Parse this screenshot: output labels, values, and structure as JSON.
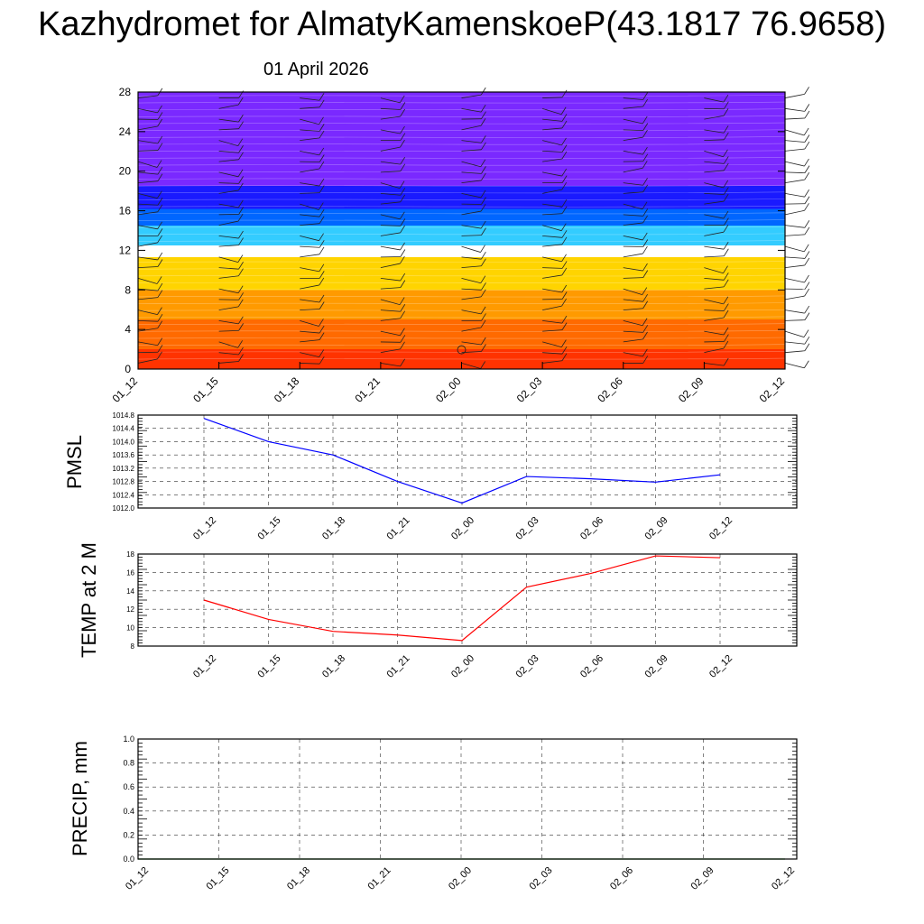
{
  "header": {
    "title": "Kazhydromet for AlmatyKamenskoeP(43.1817 76.9658)",
    "subtitle": "01 April 2026"
  },
  "chart_data": [
    {
      "type": "heatmap",
      "title": "",
      "x": [
        "01_12",
        "01_15",
        "01_18",
        "01_21",
        "02_00",
        "02_03",
        "02_06",
        "02_09",
        "02_12"
      ],
      "xticks": [
        "01_12",
        "01_15",
        "01_18",
        "01_21",
        "02_00",
        "02_03",
        "02_06",
        "02_09",
        "02_12"
      ],
      "yticks": [
        0,
        4,
        8,
        12,
        16,
        20,
        24,
        28
      ],
      "ylim": [
        0,
        28
      ],
      "color_bands": [
        {
          "from": 0,
          "to": 2,
          "color": "#ff3300"
        },
        {
          "from": 2,
          "to": 5,
          "color": "#ff6a00"
        },
        {
          "from": 5,
          "to": 8,
          "color": "#ff9a00"
        },
        {
          "from": 8,
          "to": 11.3,
          "color": "#ffd400"
        },
        {
          "from": 11.3,
          "to": 12.5,
          "color": "#ffffff"
        },
        {
          "from": 12.5,
          "to": 14.5,
          "color": "#33ccff"
        },
        {
          "from": 14.5,
          "to": 16.2,
          "color": "#0066ff"
        },
        {
          "from": 16.2,
          "to": 18.5,
          "color": "#1a1aff"
        },
        {
          "from": 18.5,
          "to": 28,
          "color": "#7a29ff"
        }
      ],
      "wind_barbs": true,
      "grid": false
    },
    {
      "type": "line",
      "ylabel": "PMSL",
      "x": [
        "01_12",
        "01_15",
        "01_18",
        "01_21",
        "02_00",
        "02_03",
        "02_06",
        "02_09",
        "02_12"
      ],
      "yticks": [
        "1012.0",
        "1012.4",
        "1012.8",
        "1013.2",
        "1013.6",
        "1014.0",
        "1014.4",
        "1014.8"
      ],
      "ylim": [
        1012.0,
        1014.8
      ],
      "series": [
        {
          "values": [
            1014.7,
            1014.0,
            1013.6,
            1012.8,
            1012.15,
            1012.95,
            1012.88,
            1012.78,
            1013.0
          ],
          "color": "#0000ff"
        }
      ],
      "grid": true
    },
    {
      "type": "line",
      "ylabel": "TEMP at 2 M",
      "x": [
        "01_12",
        "01_15",
        "01_18",
        "01_21",
        "02_00",
        "02_03",
        "02_06",
        "02_09",
        "02_12"
      ],
      "yticks": [
        "8",
        "10",
        "12",
        "14",
        "16",
        "18"
      ],
      "ylim": [
        8,
        18
      ],
      "series": [
        {
          "values": [
            13.0,
            10.9,
            9.6,
            9.2,
            8.6,
            14.4,
            15.9,
            17.8,
            17.6
          ],
          "color": "#ff0000"
        }
      ],
      "grid": true
    },
    {
      "type": "line",
      "ylabel": "PRECIP, mm",
      "x": [
        "01_12",
        "01_15",
        "01_18",
        "01_21",
        "02_00",
        "02_03",
        "02_06",
        "02_09",
        "02_12"
      ],
      "yticks": [
        "0.0",
        "0.2",
        "0.4",
        "0.6",
        "0.8",
        "1.0"
      ],
      "ylim": [
        0,
        1
      ],
      "series": [
        {
          "values": [
            0,
            0,
            0,
            0,
            0,
            0,
            0,
            0,
            0
          ],
          "color": "#008000"
        }
      ],
      "grid": true
    }
  ]
}
